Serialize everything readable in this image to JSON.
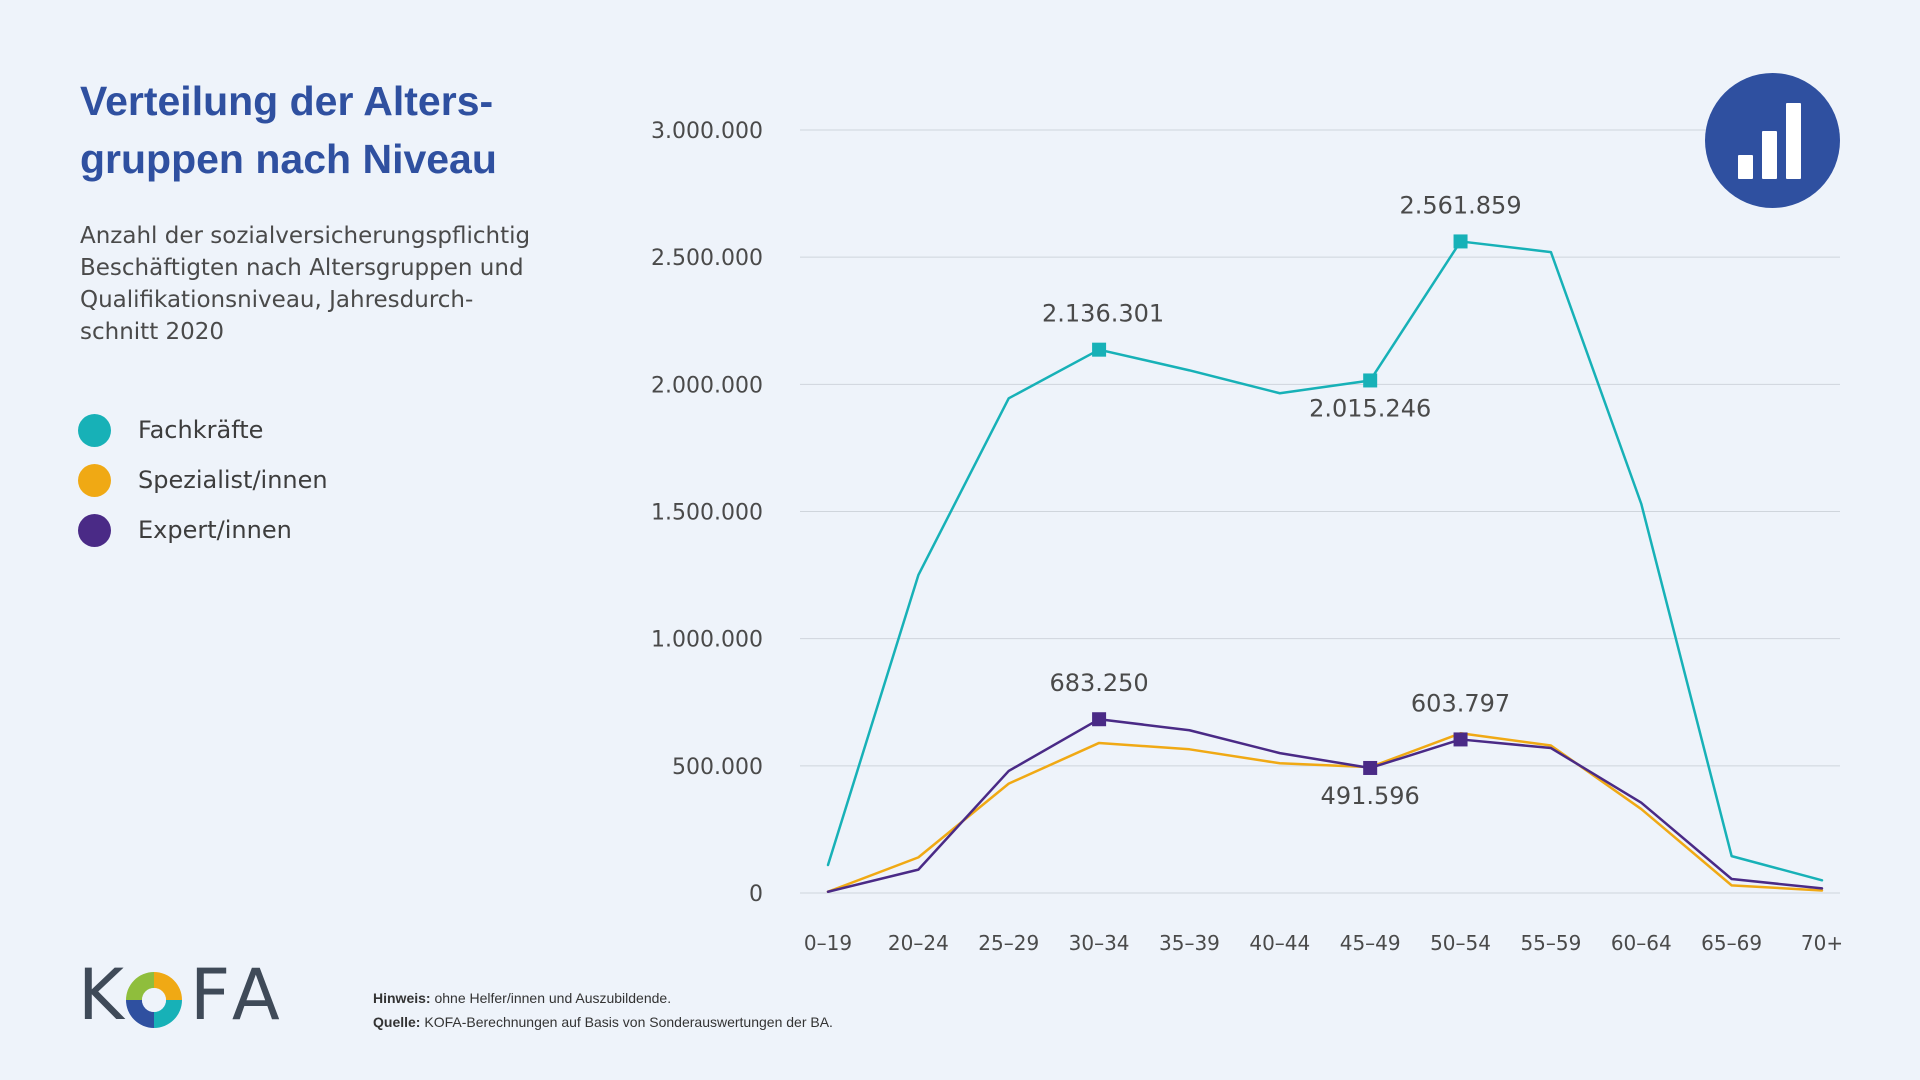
{
  "header": {
    "title_line1": "Verteilung der Alters-",
    "title_line2": "gruppen nach Niveau",
    "subtitle_line1": "Anzahl der sozialversicherungspflichtig",
    "subtitle_line2": "Beschäftigten nach Altersgruppen und",
    "subtitle_line3": "Qualifikationsniveau, Jahresdurch-",
    "subtitle_line4": "schnitt 2020"
  },
  "legend": {
    "items": [
      {
        "label": "Fachkräfte",
        "color": "#17b1b7"
      },
      {
        "label": "Spezialist/innen",
        "color": "#f0a914"
      },
      {
        "label": "Expert/innen",
        "color": "#4a2a86"
      }
    ]
  },
  "badge": {
    "icon": "bar-chart-icon",
    "color": "#2f50a0"
  },
  "footer": {
    "note_label": "Hinweis:",
    "note_text": "ohne Helfer/innen und Auszubildende.",
    "source_label": "Quelle:",
    "source_text": "KOFA-Berechnungen auf Basis von Sonderauswertungen der BA.",
    "logo_k": "K",
    "logo_fa": "FA"
  },
  "chart_data": {
    "type": "line",
    "categories": [
      "0–19",
      "20–24",
      "25–29",
      "30–34",
      "35–39",
      "40–44",
      "45–49",
      "50–54",
      "55–59",
      "60–64",
      "65–69",
      "70+"
    ],
    "ylim": [
      0,
      3000000
    ],
    "yticks": [
      0,
      500000,
      1000000,
      1500000,
      2000000,
      2500000,
      3000000
    ],
    "yticklabels": [
      "0",
      "500.000",
      "1.000.000",
      "1.500.000",
      "2.000.000",
      "2.500.000",
      "3.000.000"
    ],
    "grid": true,
    "legend_position": "left",
    "series": [
      {
        "name": "Fachkräfte",
        "color": "#17b1b7",
        "values": [
          110000,
          1250000,
          1945000,
          2136301,
          2055000,
          1965000,
          2015246,
          2561859,
          2520000,
          1530000,
          145000,
          50000
        ]
      },
      {
        "name": "Spezialist/innen",
        "color": "#f0a914",
        "values": [
          5000,
          140000,
          430000,
          590000,
          565000,
          510000,
          495000,
          628000,
          580000,
          330000,
          30000,
          10000
        ]
      },
      {
        "name": "Expert/innen",
        "color": "#4a2a86",
        "values": [
          5000,
          92000,
          480000,
          683250,
          640000,
          550000,
          491596,
          603797,
          570000,
          355000,
          55000,
          18000
        ]
      }
    ],
    "annotations": [
      {
        "series": "Fachkräfte",
        "category": "30–34",
        "text": "2.136.301",
        "position": "above",
        "marker": true
      },
      {
        "series": "Fachkräfte",
        "category": "45–49",
        "text": "2.015.246",
        "position": "below",
        "marker": true
      },
      {
        "series": "Fachkräfte",
        "category": "50–54",
        "text": "2.561.859",
        "position": "above",
        "marker": true
      },
      {
        "series": "Expert/innen",
        "category": "30–34",
        "text": "683.250",
        "position": "above",
        "marker": true
      },
      {
        "series": "Expert/innen",
        "category": "45–49",
        "text": "491.596",
        "position": "below",
        "marker": true
      },
      {
        "series": "Expert/innen",
        "category": "50–54",
        "text": "603.797",
        "position": "above",
        "marker": true
      }
    ]
  }
}
